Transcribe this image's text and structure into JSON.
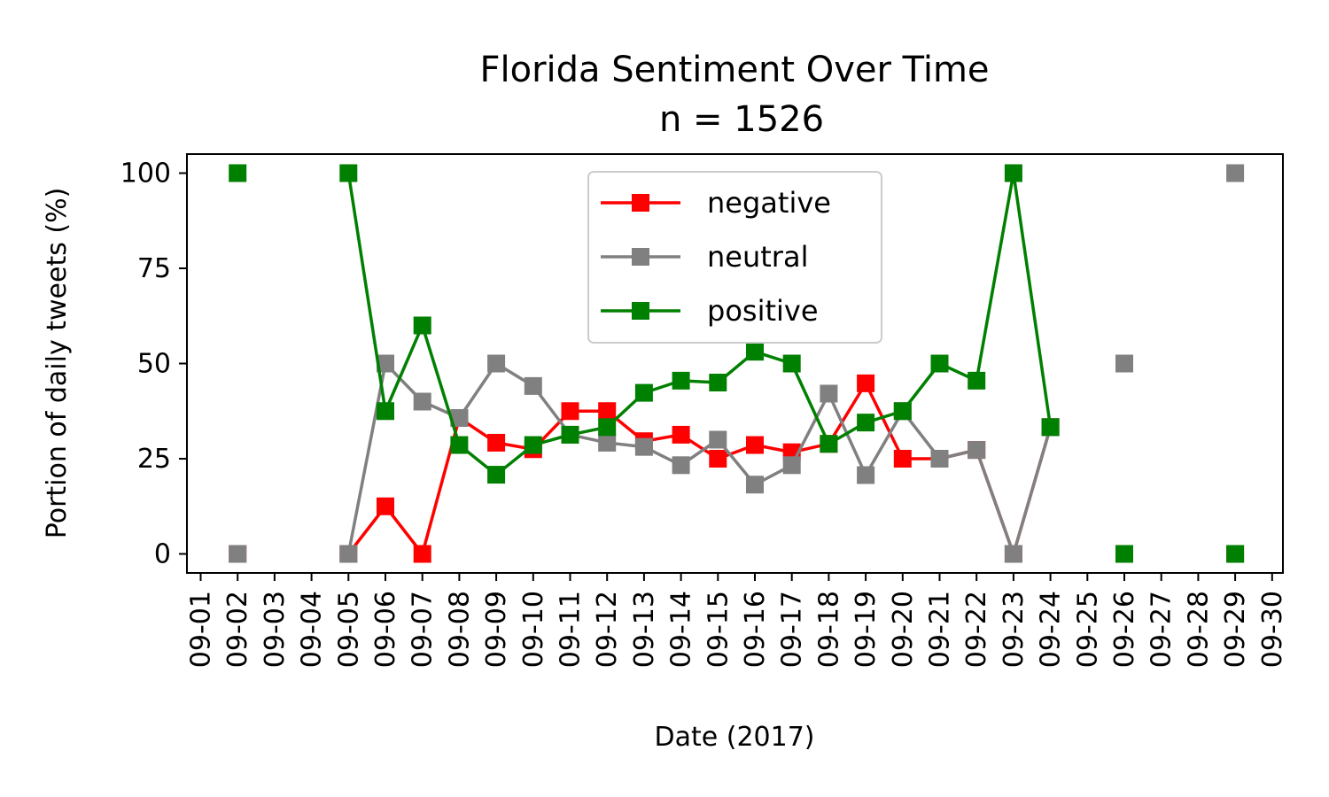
{
  "chart_data": {
    "type": "line",
    "title": "Florida Sentiment Over Time",
    "subtitle": "n = 1526",
    "xlabel": "Date (2017)",
    "ylabel": "Portion of daily tweets (%)",
    "ylim": [
      -5,
      105
    ],
    "yticks": [
      0,
      25,
      50,
      75,
      100
    ],
    "x": [
      "09-01",
      "09-02",
      "09-03",
      "09-04",
      "09-05",
      "09-06",
      "09-07",
      "09-08",
      "09-09",
      "09-10",
      "09-11",
      "09-12",
      "09-13",
      "09-14",
      "09-15",
      "09-16",
      "09-17",
      "09-18",
      "09-19",
      "09-20",
      "09-21",
      "09-22",
      "09-23",
      "09-24",
      "09-25",
      "09-26",
      "09-27",
      "09-28",
      "09-29",
      "09-30"
    ],
    "grid": false,
    "legend": "upper center",
    "series": [
      {
        "name": "negative",
        "color": "#ff0000",
        "marker": "square",
        "values": [
          null,
          0,
          null,
          null,
          0,
          12.5,
          0,
          35.7,
          29.2,
          27.5,
          37.5,
          37.5,
          29.6,
          31.3,
          25,
          28.6,
          26.7,
          28.9,
          44.8,
          25,
          25,
          27.3,
          0,
          33.3,
          null,
          0,
          null,
          null,
          0,
          null
        ]
      },
      {
        "name": "neutral",
        "color": "#808080",
        "marker": "square",
        "values": [
          null,
          0,
          null,
          null,
          0,
          50,
          40,
          35.7,
          50,
          44.1,
          31.3,
          29.2,
          28.1,
          23.3,
          30,
          18.2,
          23.3,
          42.1,
          20.7,
          37.5,
          25,
          27.3,
          0,
          33.3,
          null,
          50,
          null,
          null,
          100,
          null
        ]
      },
      {
        "name": "positive",
        "color": "#008000",
        "marker": "square",
        "values": [
          null,
          100,
          null,
          null,
          100,
          37.5,
          60,
          28.6,
          20.8,
          28.6,
          31.3,
          33.3,
          42.3,
          45.5,
          45,
          53.1,
          50,
          28.9,
          34.5,
          37.5,
          50,
          45.5,
          100,
          33.3,
          null,
          0,
          null,
          null,
          0,
          null
        ]
      }
    ]
  }
}
